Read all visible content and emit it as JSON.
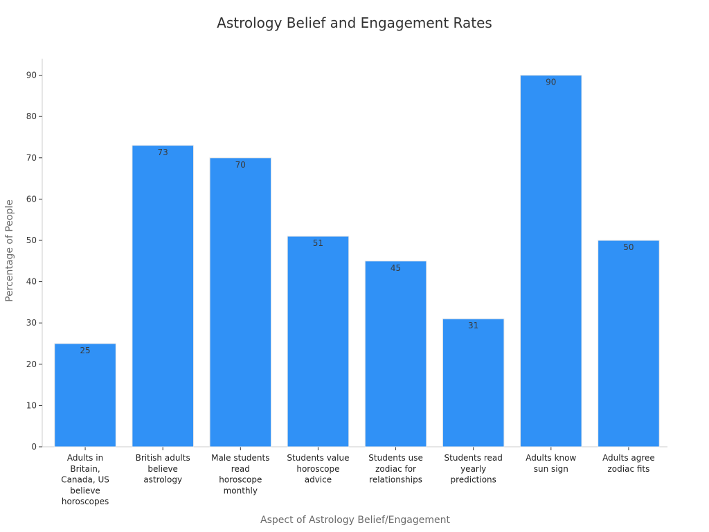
{
  "chart_data": {
    "type": "bar",
    "title": "Astrology Belief and Engagement Rates",
    "xlabel": "Aspect of Astrology Belief/Engagement",
    "ylabel": "Percentage of People",
    "categories": [
      [
        "Adults in",
        "Britain,",
        "Canada, US",
        "believe",
        "horoscopes"
      ],
      [
        "British adults",
        "believe",
        "astrology"
      ],
      [
        "Male students",
        "read",
        "horoscope",
        "monthly"
      ],
      [
        "Students value",
        "horoscope",
        "advice"
      ],
      [
        "Students use",
        "zodiac for",
        "relationships"
      ],
      [
        "Students read",
        "yearly",
        "predictions"
      ],
      [
        "Adults know",
        "sun sign"
      ],
      [
        "Adults agree",
        "zodiac fits"
      ]
    ],
    "values": [
      25,
      73,
      70,
      51,
      45,
      31,
      90,
      50
    ],
    "ylim": [
      0,
      94
    ],
    "yticks": [
      0,
      10,
      20,
      30,
      40,
      50,
      60,
      70,
      80,
      90
    ],
    "bar_color": "#3091f6",
    "grid": false
  }
}
